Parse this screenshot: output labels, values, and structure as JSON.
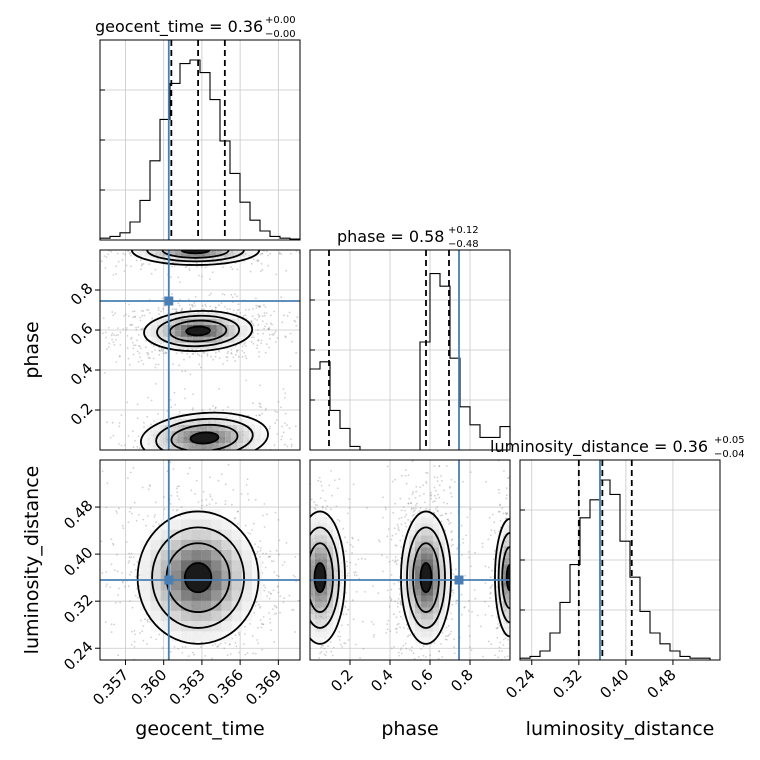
{
  "chart_data": {
    "type": "corner",
    "parameters": [
      "geocent_time",
      "phase",
      "luminosity_distance"
    ],
    "injection": {
      "geocent_time": 0.3604,
      "phase": 0.745,
      "luminosity_distance": 0.356
    },
    "axes": {
      "geocent_time": {
        "range": [
          0.355,
          0.3707
        ],
        "ticks": [
          "0.357",
          "0.360",
          "0.363",
          "0.366",
          "0.369"
        ],
        "tick_values": [
          0.357,
          0.36,
          0.363,
          0.366,
          0.369
        ]
      },
      "phase": {
        "range": [
          0.0,
          1.0
        ],
        "ticks": [
          "0.2",
          "0.4",
          "0.6",
          "0.8"
        ],
        "tick_values": [
          0.2,
          0.4,
          0.6,
          0.8
        ]
      },
      "luminosity_distance": {
        "range": [
          0.22,
          0.56
        ],
        "ticks": [
          "0.24",
          "0.32",
          "0.40",
          "0.48"
        ],
        "tick_values": [
          0.24,
          0.32,
          0.4,
          0.48
        ]
      }
    },
    "titles": [
      {
        "param": "geocent_time",
        "main": "geocent_time = 0.36",
        "plus": "+0.00",
        "minus": "−0.00"
      },
      {
        "param": "phase",
        "main": "phase = 0.58",
        "plus": "+0.12",
        "minus": "−0.48"
      },
      {
        "param": "luminosity_distance",
        "main": "luminosity_distance = 0.36",
        "plus": "+0.05",
        "minus": "−0.04"
      }
    ],
    "quantiles": {
      "geocent_time": [
        0.3606,
        0.3627,
        0.3648
      ],
      "phase": [
        0.095,
        0.58,
        0.695
      ],
      "luminosity_distance": [
        0.32,
        0.36,
        0.41
      ]
    },
    "histograms": {
      "geocent_time": [
        0.01,
        0.02,
        0.04,
        0.1,
        0.22,
        0.44,
        0.67,
        0.87,
        0.98,
        1.0,
        0.93,
        0.78,
        0.55,
        0.37,
        0.21,
        0.11,
        0.05,
        0.02,
        0.01,
        0.005
      ],
      "phase": [
        0.45,
        0.49,
        0.22,
        0.12,
        0.02,
        0.0,
        0.0,
        0.0,
        0.0,
        0.0,
        0.0,
        0.6,
        0.98,
        0.91,
        0.51,
        0.24,
        0.14,
        0.07,
        0.07,
        0.13
      ],
      "luminosity_distance": [
        0.01,
        0.02,
        0.05,
        0.15,
        0.32,
        0.53,
        0.79,
        0.89,
        1.0,
        0.92,
        0.66,
        0.46,
        0.27,
        0.15,
        0.09,
        0.05,
        0.02,
        0.01,
        0.01,
        0.0
      ]
    },
    "correlations": {
      "phase_vs_geocent_time": {
        "modes": [
          {
            "x": 0.3627,
            "y": 0.595,
            "sx": 0.0017,
            "sy": 0.04,
            "rho": 0.1
          },
          {
            "x": 0.3632,
            "y": 0.06,
            "sx": 0.002,
            "sy": 0.05,
            "rho": 0.2
          },
          {
            "x": 0.3625,
            "y": 1.0,
            "sx": 0.002,
            "sy": 0.03,
            "rho": 0.0
          }
        ]
      },
      "luminosity_distance_vs_geocent_time": {
        "modes": [
          {
            "x": 0.3627,
            "y": 0.36,
            "sx": 0.0019,
            "sy": 0.045,
            "rho": 0.0
          }
        ]
      },
      "luminosity_distance_vs_phase": {
        "modes": [
          {
            "x": 0.58,
            "y": 0.36,
            "sx": 0.05,
            "sy": 0.045,
            "rho": 0.0
          },
          {
            "x": 0.05,
            "y": 0.36,
            "sx": 0.05,
            "sy": 0.045,
            "rho": 0.0
          },
          {
            "x": 1.0,
            "y": 0.36,
            "sx": 0.03,
            "sy": 0.04,
            "rho": 0.0
          }
        ]
      }
    },
    "xlabels": [
      "geocent_time",
      "phase",
      "luminosity_distance"
    ],
    "ylabels": [
      "phase",
      "luminosity_distance"
    ],
    "colors": {
      "truth": "#4a7fb5",
      "contour": "#000000",
      "quantile": "#000000",
      "grid": "#c8c8c8"
    },
    "grid": true
  }
}
